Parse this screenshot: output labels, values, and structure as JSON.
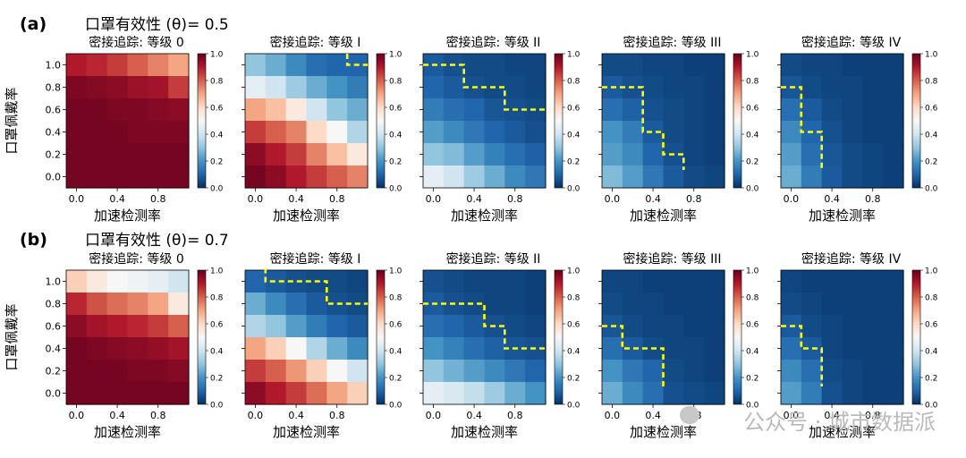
{
  "panel_labels": [
    "(a)",
    "(b)"
  ],
  "suptitles": [
    "口罩有效性 (θ)= 0.5",
    "口罩有效性 (θ)= 0.7"
  ],
  "subplot_titles": [
    "密接追踪: 等级 0",
    "密接追踪: 等级 I",
    "密接追踪: 等级 II",
    "密接追踪: 等级 III",
    "密接追踪: 等级 IV"
  ],
  "xlabel": "加速检测率",
  "ylabel": "口罩佩戴率",
  "colormap": {
    "stops": [
      {
        "v": 0.0,
        "color": "#053061"
      },
      {
        "v": 0.1,
        "color": "#2166ac"
      },
      {
        "v": 0.2,
        "color": "#4393c3"
      },
      {
        "v": 0.3,
        "color": "#92c5de"
      },
      {
        "v": 0.4,
        "color": "#d1e5f0"
      },
      {
        "v": 0.5,
        "color": "#f7f7f7"
      },
      {
        "v": 0.6,
        "color": "#fddbc7"
      },
      {
        "v": 0.7,
        "color": "#f4a582"
      },
      {
        "v": 0.8,
        "color": "#d6604d"
      },
      {
        "v": 0.9,
        "color": "#b2182b"
      },
      {
        "v": 1.0,
        "color": "#67001f"
      }
    ],
    "ticks": [
      "0.0",
      "0.2",
      "0.4",
      "0.6",
      "0.8",
      "1.0"
    ]
  },
  "boundary_color": "#ffff00",
  "watermark": "公众号 · 城市数据派",
  "chart_data": [
    {
      "type": "heatmap",
      "panel": "(a)",
      "theta": 0.5,
      "title": "密接追踪: 等级 0",
      "x_ticks": [
        "0.0",
        "0.4",
        "0.8"
      ],
      "y_ticks": [
        "0.0",
        "0.2",
        "0.4",
        "0.6",
        "0.8",
        "1.0"
      ],
      "xlim": [
        0,
        1
      ],
      "ylim": [
        0,
        1
      ],
      "rows_top_to_bottom": [
        [
          0.9,
          0.88,
          0.85,
          0.8,
          0.75,
          0.7
        ],
        [
          0.97,
          0.96,
          0.95,
          0.93,
          0.92,
          0.85
        ],
        [
          0.98,
          0.98,
          0.97,
          0.97,
          0.96,
          0.95
        ],
        [
          0.98,
          0.98,
          0.98,
          0.97,
          0.97,
          0.97
        ],
        [
          0.98,
          0.98,
          0.98,
          0.98,
          0.98,
          0.98
        ],
        [
          0.98,
          0.98,
          0.98,
          0.98,
          0.98,
          0.98
        ]
      ],
      "boundary": []
    },
    {
      "type": "heatmap",
      "panel": "(a)",
      "theta": 0.5,
      "title": "密接追踪: 等级 I",
      "x_ticks": [
        "0.0",
        "0.4",
        "0.8"
      ],
      "y_ticks": [],
      "xlim": [
        0,
        1
      ],
      "ylim": [
        0,
        1
      ],
      "rows_top_to_bottom": [
        [
          0.3,
          0.25,
          0.18,
          0.12,
          0.1,
          0.1
        ],
        [
          0.45,
          0.4,
          0.32,
          0.25,
          0.2,
          0.15
        ],
        [
          0.7,
          0.65,
          0.55,
          0.4,
          0.3,
          0.25
        ],
        [
          0.85,
          0.8,
          0.75,
          0.6,
          0.5,
          0.35
        ],
        [
          0.95,
          0.9,
          0.85,
          0.75,
          0.65,
          0.55
        ],
        [
          0.98,
          0.95,
          0.9,
          0.85,
          0.8,
          0.75
        ]
      ],
      "boundary": [
        [
          5,
          0
        ],
        [
          5,
          0.5
        ],
        [
          6,
          0.5
        ]
      ]
    },
    {
      "type": "heatmap",
      "panel": "(a)",
      "theta": 0.5,
      "title": "密接追踪: 等级 II",
      "x_ticks": [
        "0.0",
        "0.4",
        "0.8"
      ],
      "y_ticks": [],
      "xlim": [
        0,
        1
      ],
      "ylim": [
        0,
        1
      ],
      "rows_top_to_bottom": [
        [
          0.08,
          0.06,
          0.05,
          0.05,
          0.04,
          0.04
        ],
        [
          0.1,
          0.08,
          0.06,
          0.05,
          0.05,
          0.04
        ],
        [
          0.15,
          0.12,
          0.1,
          0.07,
          0.06,
          0.05
        ],
        [
          0.22,
          0.18,
          0.14,
          0.1,
          0.08,
          0.06
        ],
        [
          0.3,
          0.28,
          0.22,
          0.16,
          0.12,
          0.09
        ],
        [
          0.45,
          0.4,
          0.32,
          0.25,
          0.18,
          0.14
        ]
      ],
      "boundary": [
        [
          0,
          0.5
        ],
        [
          2,
          0.5
        ],
        [
          2,
          1.5
        ],
        [
          4,
          1.5
        ],
        [
          4,
          2.5
        ],
        [
          6,
          2.5
        ]
      ]
    },
    {
      "type": "heatmap",
      "panel": "(a)",
      "theta": 0.5,
      "title": "密接追踪: 等级 III",
      "x_ticks": [
        "0.0",
        "0.4",
        "0.8"
      ],
      "y_ticks": [],
      "xlim": [
        0,
        1
      ],
      "ylim": [
        0,
        1
      ],
      "rows_top_to_bottom": [
        [
          0.05,
          0.05,
          0.04,
          0.04,
          0.03,
          0.03
        ],
        [
          0.08,
          0.06,
          0.05,
          0.04,
          0.04,
          0.03
        ],
        [
          0.12,
          0.09,
          0.06,
          0.05,
          0.04,
          0.03
        ],
        [
          0.2,
          0.15,
          0.08,
          0.05,
          0.04,
          0.03
        ],
        [
          0.22,
          0.18,
          0.1,
          0.06,
          0.04,
          0.03
        ],
        [
          0.28,
          0.22,
          0.14,
          0.08,
          0.05,
          0.04
        ]
      ],
      "boundary": [
        [
          0,
          1.5
        ],
        [
          2,
          1.5
        ],
        [
          2,
          3.5
        ],
        [
          3,
          3.5
        ],
        [
          3,
          4.5
        ],
        [
          4,
          4.5
        ],
        [
          4,
          5.2
        ]
      ]
    },
    {
      "type": "heatmap",
      "panel": "(a)",
      "theta": 0.5,
      "title": "密接追踪: 等级 IV",
      "x_ticks": [
        "0.0",
        "0.4",
        "0.8"
      ],
      "y_ticks": [],
      "xlim": [
        0,
        1
      ],
      "ylim": [
        0,
        1
      ],
      "rows_top_to_bottom": [
        [
          0.05,
          0.04,
          0.04,
          0.03,
          0.03,
          0.03
        ],
        [
          0.07,
          0.05,
          0.04,
          0.04,
          0.03,
          0.03
        ],
        [
          0.12,
          0.08,
          0.05,
          0.04,
          0.03,
          0.03
        ],
        [
          0.18,
          0.1,
          0.06,
          0.04,
          0.03,
          0.03
        ],
        [
          0.22,
          0.12,
          0.07,
          0.05,
          0.04,
          0.03
        ],
        [
          0.25,
          0.15,
          0.08,
          0.05,
          0.04,
          0.03
        ]
      ],
      "boundary": [
        [
          0,
          1.5
        ],
        [
          1,
          1.5
        ],
        [
          1,
          3.5
        ],
        [
          2,
          3.5
        ],
        [
          2,
          5.2
        ]
      ]
    },
    {
      "type": "heatmap",
      "panel": "(b)",
      "theta": 0.7,
      "title": "密接追踪: 等级 0",
      "x_ticks": [
        "0.0",
        "0.4",
        "0.8"
      ],
      "y_ticks": [
        "0.0",
        "0.2",
        "0.4",
        "0.6",
        "0.8",
        "1.0"
      ],
      "xlim": [
        0,
        1
      ],
      "ylim": [
        0,
        1
      ],
      "rows_top_to_bottom": [
        [
          0.62,
          0.55,
          0.5,
          0.48,
          0.45,
          0.4
        ],
        [
          0.88,
          0.82,
          0.78,
          0.75,
          0.7,
          0.55
        ],
        [
          0.95,
          0.92,
          0.9,
          0.88,
          0.85,
          0.8
        ],
        [
          0.98,
          0.97,
          0.96,
          0.95,
          0.94,
          0.92
        ],
        [
          0.98,
          0.98,
          0.98,
          0.97,
          0.97,
          0.96
        ],
        [
          0.98,
          0.98,
          0.98,
          0.98,
          0.98,
          0.98
        ]
      ],
      "boundary": []
    },
    {
      "type": "heatmap",
      "panel": "(b)",
      "theta": 0.7,
      "title": "密接追踪: 等级 I",
      "x_ticks": [
        "0.0",
        "0.4",
        "0.8"
      ],
      "y_ticks": [],
      "xlim": [
        0,
        1
      ],
      "ylim": [
        0,
        1
      ],
      "rows_top_to_bottom": [
        [
          0.1,
          0.08,
          0.06,
          0.05,
          0.05,
          0.04
        ],
        [
          0.25,
          0.18,
          0.12,
          0.08,
          0.06,
          0.05
        ],
        [
          0.35,
          0.3,
          0.22,
          0.15,
          0.1,
          0.08
        ],
        [
          0.7,
          0.62,
          0.5,
          0.35,
          0.25,
          0.18
        ],
        [
          0.85,
          0.8,
          0.72,
          0.62,
          0.5,
          0.4
        ],
        [
          0.95,
          0.9,
          0.85,
          0.78,
          0.7,
          0.62
        ]
      ],
      "boundary": [
        [
          1,
          -0.1
        ],
        [
          1,
          0.5
        ],
        [
          4,
          0.5
        ],
        [
          4,
          1.5
        ],
        [
          6,
          1.5
        ]
      ]
    },
    {
      "type": "heatmap",
      "panel": "(b)",
      "theta": 0.7,
      "title": "密接追踪: 等级 II",
      "x_ticks": [
        "0.0",
        "0.4",
        "0.8"
      ],
      "y_ticks": [],
      "xlim": [
        0,
        1
      ],
      "ylim": [
        0,
        1
      ],
      "rows_top_to_bottom": [
        [
          0.06,
          0.05,
          0.04,
          0.04,
          0.04,
          0.03
        ],
        [
          0.08,
          0.06,
          0.05,
          0.04,
          0.04,
          0.03
        ],
        [
          0.12,
          0.1,
          0.08,
          0.06,
          0.05,
          0.04
        ],
        [
          0.2,
          0.16,
          0.12,
          0.09,
          0.07,
          0.06
        ],
        [
          0.3,
          0.26,
          0.22,
          0.18,
          0.14,
          0.1
        ],
        [
          0.45,
          0.42,
          0.38,
          0.32,
          0.25,
          0.2
        ]
      ],
      "boundary": [
        [
          0,
          1.5
        ],
        [
          3,
          1.5
        ],
        [
          3,
          2.5
        ],
        [
          4,
          2.5
        ],
        [
          4,
          3.5
        ],
        [
          6,
          3.5
        ]
      ]
    },
    {
      "type": "heatmap",
      "panel": "(b)",
      "theta": 0.7,
      "title": "密接追踪: 等级 III",
      "x_ticks": [
        "0.0",
        "0.4",
        "0.8"
      ],
      "y_ticks": [],
      "xlim": [
        0,
        1
      ],
      "ylim": [
        0,
        1
      ],
      "rows_top_to_bottom": [
        [
          0.04,
          0.04,
          0.03,
          0.03,
          0.03,
          0.03
        ],
        [
          0.05,
          0.04,
          0.04,
          0.03,
          0.03,
          0.03
        ],
        [
          0.07,
          0.05,
          0.04,
          0.04,
          0.03,
          0.03
        ],
        [
          0.12,
          0.08,
          0.05,
          0.04,
          0.04,
          0.03
        ],
        [
          0.2,
          0.14,
          0.1,
          0.05,
          0.04,
          0.03
        ],
        [
          0.25,
          0.18,
          0.12,
          0.06,
          0.05,
          0.04
        ]
      ],
      "boundary": [
        [
          0,
          2.5
        ],
        [
          1,
          2.5
        ],
        [
          1,
          3.5
        ],
        [
          3,
          3.5
        ],
        [
          3,
          5.2
        ]
      ]
    },
    {
      "type": "heatmap",
      "panel": "(b)",
      "theta": 0.7,
      "title": "密接追踪: 等级 IV",
      "x_ticks": [
        "0.0",
        "0.4",
        "0.8"
      ],
      "y_ticks": [],
      "xlim": [
        0,
        1
      ],
      "ylim": [
        0,
        1
      ],
      "rows_top_to_bottom": [
        [
          0.04,
          0.03,
          0.03,
          0.03,
          0.03,
          0.03
        ],
        [
          0.05,
          0.04,
          0.03,
          0.03,
          0.03,
          0.03
        ],
        [
          0.08,
          0.05,
          0.04,
          0.03,
          0.03,
          0.03
        ],
        [
          0.12,
          0.08,
          0.04,
          0.03,
          0.03,
          0.03
        ],
        [
          0.18,
          0.12,
          0.05,
          0.04,
          0.03,
          0.03
        ],
        [
          0.22,
          0.15,
          0.06,
          0.04,
          0.03,
          0.03
        ]
      ],
      "boundary": [
        [
          0,
          2.5
        ],
        [
          1,
          2.5
        ],
        [
          1,
          3.5
        ],
        [
          2,
          3.5
        ],
        [
          2,
          5.2
        ]
      ]
    }
  ]
}
